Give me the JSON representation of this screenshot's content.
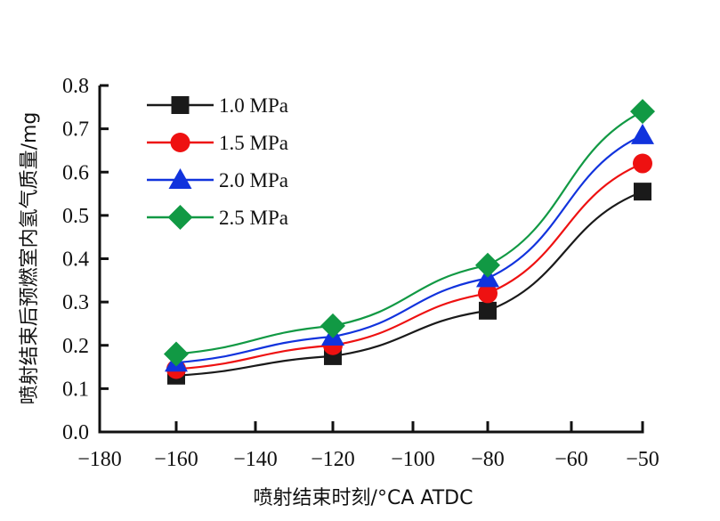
{
  "chart_data": {
    "type": "line",
    "title": "",
    "xlabel": "喷射结束时刻/°CA ATDC",
    "ylabel": "喷射结束后预燃室内氢气质量/mg",
    "xlim": [
      -180,
      -50
    ],
    "ylim": [
      0.0,
      0.8
    ],
    "x_ticks": [
      -180,
      -160,
      -140,
      -120,
      -100,
      -80,
      -60,
      -50
    ],
    "x_tick_labels": [
      "−180",
      "−160",
      "−140",
      "−120",
      "−100",
      "−80",
      "−60",
      "−50"
    ],
    "y_ticks": [
      0.0,
      0.1,
      0.2,
      0.3,
      0.4,
      0.5,
      0.6,
      0.7,
      0.8
    ],
    "y_tick_labels": [
      "0.0",
      "0.1",
      "0.2",
      "0.3",
      "0.4",
      "0.5",
      "0.6",
      "0.7",
      "0.8"
    ],
    "grid": false,
    "legend_position": "top-left",
    "x": [
      -160,
      -120,
      -80,
      -50
    ],
    "series": [
      {
        "name": "1.0 MPa",
        "marker": "square",
        "color": "#1a1a1a",
        "values": [
          0.13,
          0.175,
          0.28,
          0.555
        ]
      },
      {
        "name": "1.5 MPa",
        "marker": "circle",
        "color": "#ee1111",
        "values": [
          0.145,
          0.2,
          0.32,
          0.62
        ]
      },
      {
        "name": "2.0 MPa",
        "marker": "triangle",
        "color": "#1133dd",
        "values": [
          0.16,
          0.22,
          0.355,
          0.685
        ]
      },
      {
        "name": "2.5 MPa",
        "marker": "diamond",
        "color": "#119944",
        "values": [
          0.18,
          0.245,
          0.385,
          0.74
        ]
      }
    ]
  }
}
